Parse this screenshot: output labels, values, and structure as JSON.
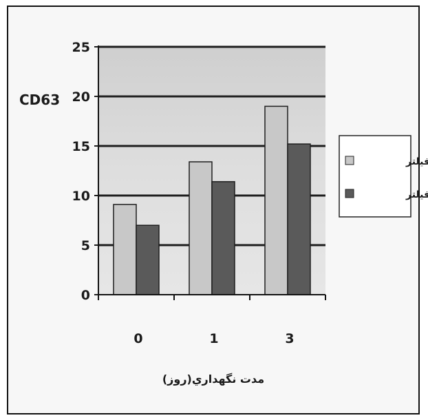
{
  "chart_data": {
    "type": "bar",
    "ylabel": "CD63",
    "xlabel": "مدت نگهداري(روز)",
    "categories": [
      "0",
      "1",
      "3"
    ],
    "ylim": [
      0,
      25
    ],
    "yticks": [
      0,
      5,
      10,
      15,
      20,
      25
    ],
    "grid": true,
    "legend_position": "right",
    "series": [
      {
        "name": "قبل از فیلتر",
        "values": [
          9.1,
          13.4,
          19.0
        ],
        "color": "#c8c8c8"
      },
      {
        "name": "بعد از فیلتر",
        "values": [
          7.0,
          11.4,
          15.2
        ],
        "color": "#5a5a5a"
      }
    ]
  }
}
